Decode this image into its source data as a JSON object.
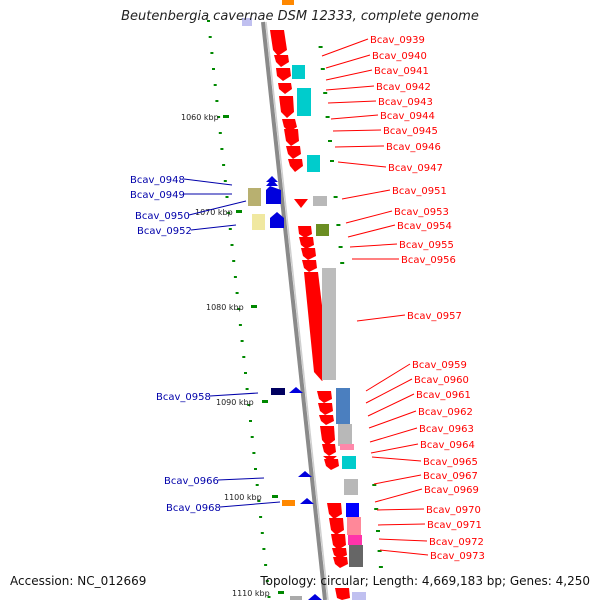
{
  "title": "Beutenbergia cavernae DSM 12333, complete genome",
  "footer": {
    "accession": "Accession: NC_012669",
    "topology": "Topology: circular; Length: 4,669,183 bp; Genes: 4,250"
  },
  "colors": {
    "backbone": "#888888",
    "forward_gene": "#ff0000",
    "reverse_label": "#0000aa",
    "forward_label": "#ff0000",
    "tick_green": "#008800"
  },
  "kbp_ticks": [
    "1060 kbp",
    "1070 kbp",
    "1080 kbp",
    "1090 kbp",
    "1100 kbp",
    "1110 kbp"
  ],
  "gene_labels_right": [
    "Bcav_0939",
    "Bcav_0940",
    "Bcav_0941",
    "Bcav_0942",
    "Bcav_0943",
    "Bcav_0944",
    "Bcav_0945",
    "Bcav_0946",
    "Bcav_0947",
    "Bcav_0951",
    "Bcav_0953",
    "Bcav_0954",
    "Bcav_0955",
    "Bcav_0956",
    "Bcav_0957",
    "Bcav_0959",
    "Bcav_0960",
    "Bcav_0961",
    "Bcav_0962",
    "Bcav_0963",
    "Bcav_0964",
    "Bcav_0965",
    "Bcav_0967",
    "Bcav_0969",
    "Bcav_0970",
    "Bcav_0971",
    "Bcav_0972",
    "Bcav_0973"
  ],
  "gene_labels_left": [
    "Bcav_0948",
    "Bcav_0949",
    "Bcav_0950",
    "Bcav_0952",
    "Bcav_0958",
    "Bcav_0966",
    "Bcav_0968"
  ]
}
